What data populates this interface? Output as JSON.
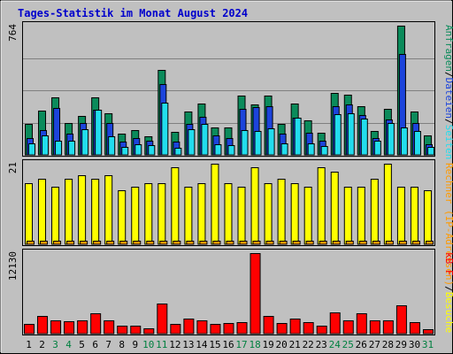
{
  "chart_data": {
    "type": "bar",
    "title": "Tages-Statistik im Monat August 2024",
    "categories": [
      "1",
      "2",
      "3",
      "4",
      "5",
      "6",
      "7",
      "8",
      "9",
      "10",
      "11",
      "12",
      "13",
      "14",
      "15",
      "16",
      "17",
      "18",
      "19",
      "20",
      "21",
      "22",
      "23",
      "24",
      "25",
      "26",
      "27",
      "28",
      "29",
      "30",
      "31"
    ],
    "weekend_categories": [
      "3",
      "4",
      "10",
      "11",
      "17",
      "18",
      "24",
      "25",
      "31"
    ],
    "colors": {
      "anfragen": "#0b8b5b",
      "dateien": "#1c44dc",
      "seiten": "#22ddee",
      "rechner": "#ffff00",
      "besuche": "#ff9a00",
      "kb": "#ff0000",
      "title": "#0000cc",
      "weekday_label": "#000000",
      "weekend_label": "#008040"
    },
    "panels": [
      {
        "id": "top",
        "ymax_label": "764",
        "ylim": [
          0,
          764
        ],
        "legend": [
          {
            "text": "Anfragen",
            "color": "#0b8b5b"
          },
          {
            "text": "/",
            "color": "#000000"
          },
          {
            "text": "Dateien",
            "color": "#1c44dc"
          },
          {
            "text": "/",
            "color": "#000000"
          },
          {
            "text": "Seiten",
            "color": "#22ddee"
          }
        ],
        "series": [
          {
            "name": "Anfragen",
            "color": "#0b8b5b",
            "values": [
              182,
              260,
              342,
              190,
              232,
              338,
              248,
              126,
              146,
              108,
              504,
              134,
              254,
              303,
              162,
              162,
              351,
              300,
              348,
              185,
              302,
              206,
              133,
              367,
              358,
              290,
              142,
              274,
              764,
              254,
              117
            ]
          },
          {
            "name": "Dateien",
            "color": "#1c44dc",
            "values": [
              97,
              146,
              277,
              126,
              191,
              266,
              191,
              80,
              97,
              83,
              418,
              80,
              183,
              227,
              113,
              100,
              271,
              280,
              288,
              124,
              221,
              130,
              82,
              288,
              297,
              237,
              99,
              210,
              598,
              189,
              61
            ]
          },
          {
            "name": "Seiten",
            "color": "#22ddee",
            "values": [
              66,
              117,
              85,
              85,
              153,
              266,
              112,
              46,
              61,
              57,
              311,
              40,
              152,
              185,
              63,
              56,
              144,
              142,
              155,
              70,
              220,
              70,
              52,
              243,
              247,
              214,
              83,
              189,
              162,
              143,
              45
            ]
          }
        ]
      },
      {
        "id": "middle",
        "ymax_label": "21",
        "ylim": [
          0,
          21
        ],
        "legend": [
          {
            "text": "Rechner (IP-Adressen)",
            "color": "#ff9a00"
          },
          {
            "text": "/",
            "color": "#000000"
          },
          {
            "text": "Besuche",
            "color": "#ffff00"
          }
        ],
        "series": [
          {
            "name": "Rechner (IP-Adressen)",
            "color": "#ff9a00",
            "values": [
              1,
              1,
              1,
              1,
              1,
              1,
              1,
              1,
              1,
              1,
              1,
              1,
              1,
              1,
              1,
              1,
              1,
              1,
              1,
              1,
              1,
              1,
              1,
              1,
              1,
              1,
              1,
              1,
              1,
              1,
              1
            ]
          },
          {
            "name": "Besuche",
            "color": "#ffff00",
            "values": [
              16,
              17,
              15,
              17,
              18,
              17,
              18,
              14,
              15,
              16,
              16,
              20,
              15,
              16,
              21,
              16,
              15,
              20,
              16,
              17,
              16,
              15,
              20,
              19,
              15,
              15,
              17,
              21,
              15,
              15,
              14
            ]
          }
        ]
      },
      {
        "id": "bottom",
        "ymax_label": "12130",
        "ylim": [
          0,
          12130
        ],
        "legend": [
          {
            "text": "kB F",
            "color": "#ff0000"
          }
        ],
        "series": [
          {
            "name": "kB F",
            "color": "#ff0000",
            "values": [
              1405,
              2655,
              2034,
              1867,
              1991,
              3045,
              1991,
              1255,
              1255,
              803,
              4532,
              1405,
              2263,
              2034,
              1405,
              1555,
              1771,
              12130,
              2726,
              1555,
              2263,
              1771,
              1255,
              3219,
              2034,
              3045,
              2034,
              1991,
              4245,
              1771,
              653
            ]
          }
        ]
      }
    ]
  }
}
